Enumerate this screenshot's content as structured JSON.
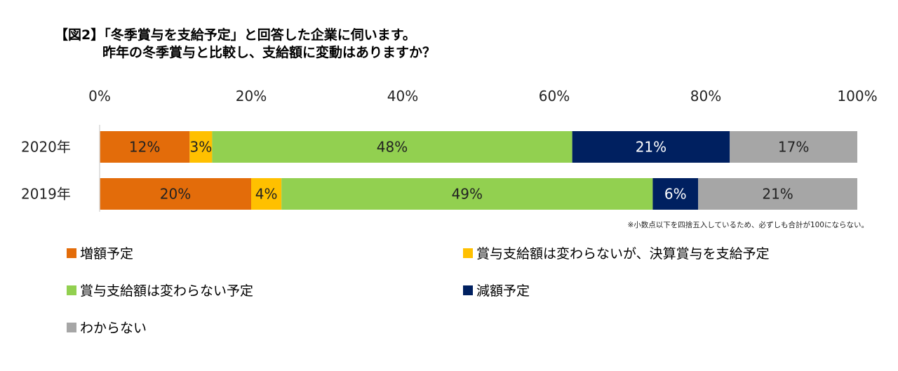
{
  "title": {
    "line1": "【図2】「冬季賞与を支給予定」と回答した企業に伺います。",
    "line2": "昨年の冬季賞与と比較し、支給額に変動はありますか？"
  },
  "footnote": "※小数点以下を四捨五入しているため、必ずしも合計が100にならない。",
  "chart_data": {
    "type": "bar",
    "orientation": "horizontal-stacked-100",
    "title": "【図2】「冬季賞与を支給予定」と回答した企業に伺います。昨年の冬季賞与と比較し、支給額に変動はありますか？",
    "categories": [
      "2020年",
      "2019年"
    ],
    "xlim": [
      0,
      100
    ],
    "xticks": [
      "0%",
      "20%",
      "40%",
      "60%",
      "80%",
      "100%"
    ],
    "series": [
      {
        "name": "増額予定",
        "color": "#E36C0A",
        "values": [
          12,
          20
        ],
        "label_color": "#222222"
      },
      {
        "name": "賞与支給額は変わらないが、決算賞与を支給予定",
        "color": "#FFC000",
        "values": [
          3,
          4
        ],
        "label_color": "#222222"
      },
      {
        "name": "賞与支給額は変わらない予定",
        "color": "#92D050",
        "values": [
          48,
          49
        ],
        "label_color": "#222222"
      },
      {
        "name": "減額予定",
        "color": "#002060",
        "values": [
          21,
          6
        ],
        "label_color": "#FFFFFF"
      },
      {
        "name": "わからない",
        "color": "#A6A6A6",
        "values": [
          17,
          21
        ],
        "label_color": "#222222"
      }
    ],
    "legend_position": "bottom"
  }
}
